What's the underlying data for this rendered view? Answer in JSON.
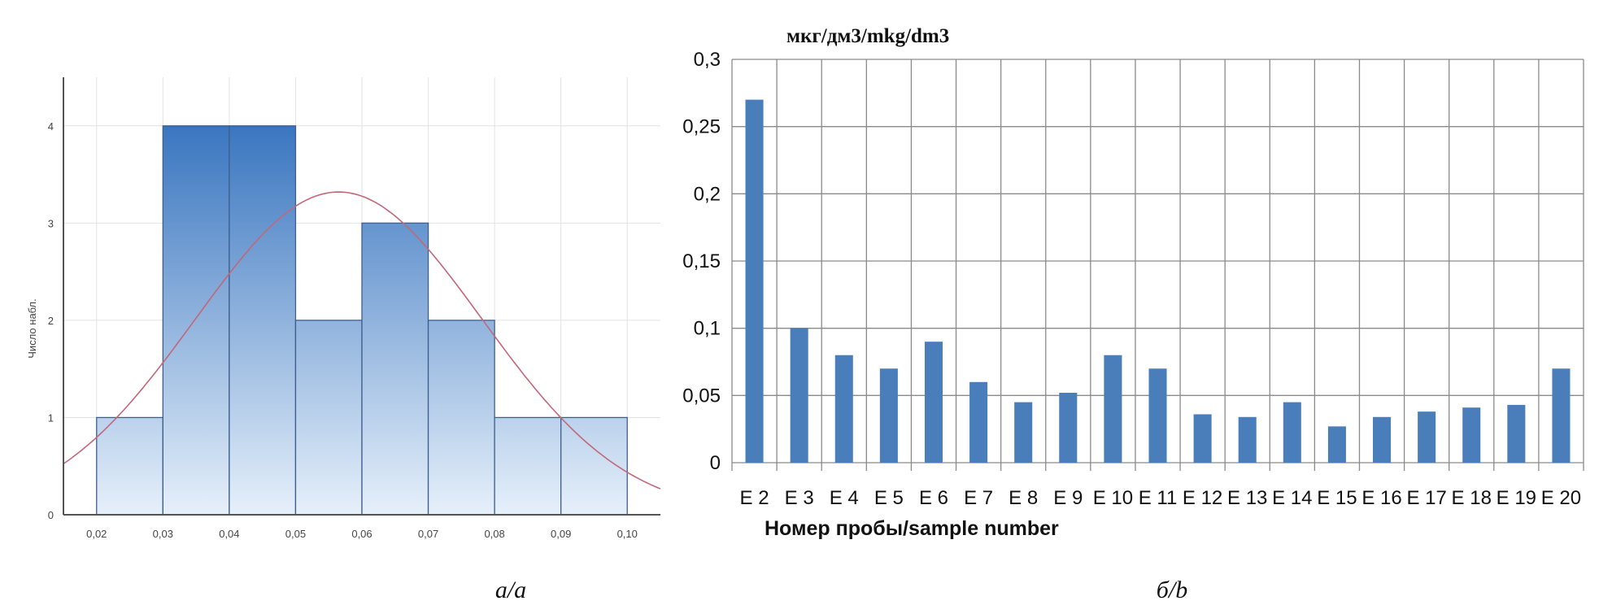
{
  "chart_data": [
    {
      "type": "bar",
      "subtype": "histogram",
      "caption": "а/a",
      "ylabel": "Число набл.",
      "xlabel": "",
      "bins": [
        [
          0.02,
          0.03
        ],
        [
          0.03,
          0.04
        ],
        [
          0.04,
          0.05
        ],
        [
          0.05,
          0.06
        ],
        [
          0.06,
          0.07
        ],
        [
          0.07,
          0.08
        ],
        [
          0.08,
          0.09
        ],
        [
          0.09,
          0.1
        ]
      ],
      "values": [
        1,
        4,
        4,
        2,
        3,
        2,
        1,
        1
      ],
      "x_ticks": [
        "0,02",
        "0,03",
        "0,04",
        "0,05",
        "0,06",
        "0,07",
        "0,08",
        "0,09",
        "0,10"
      ],
      "y_ticks": [
        "0",
        "1",
        "2",
        "3",
        "4"
      ],
      "xlim": [
        0.015,
        0.105
      ],
      "ylim": [
        0,
        4.5
      ],
      "grid": true,
      "fit_curve": {
        "type": "normal",
        "mean": 0.0565,
        "sd": 0.0216,
        "peak": 3.32,
        "color": "#c0687a"
      },
      "colors": {
        "bar_top": "#3a76c0",
        "bar_bottom": "#e6f0fa",
        "bar_edge": "#3d5f8f"
      }
    },
    {
      "type": "bar",
      "caption": "б/b",
      "title": "мкг/дм3/mkg/dm3",
      "xlabel": "Номер пробы/sample number",
      "ylabel": "",
      "categories": [
        "E 2",
        "E 3",
        "E 4",
        "E 5",
        "E 6",
        "E 7",
        "E 8",
        "E 9",
        "E 10",
        "E 11",
        "E 12",
        "E 13",
        "E 14",
        "E 15",
        "E 16",
        "E 17",
        "E 18",
        "E 19",
        "E 20"
      ],
      "values": [
        0.27,
        0.1,
        0.08,
        0.07,
        0.09,
        0.06,
        0.045,
        0.052,
        0.08,
        0.07,
        0.036,
        0.034,
        0.045,
        0.027,
        0.034,
        0.038,
        0.041,
        0.043,
        0.07
      ],
      "y_ticks": [
        "0",
        "0,05",
        "0,1",
        "0,15",
        "0,2",
        "0,25",
        "0,3"
      ],
      "ylim": [
        0,
        0.3
      ],
      "grid": true,
      "colors": {
        "bar": "#4a7ebb",
        "grid": "#8a8a8a"
      }
    }
  ]
}
